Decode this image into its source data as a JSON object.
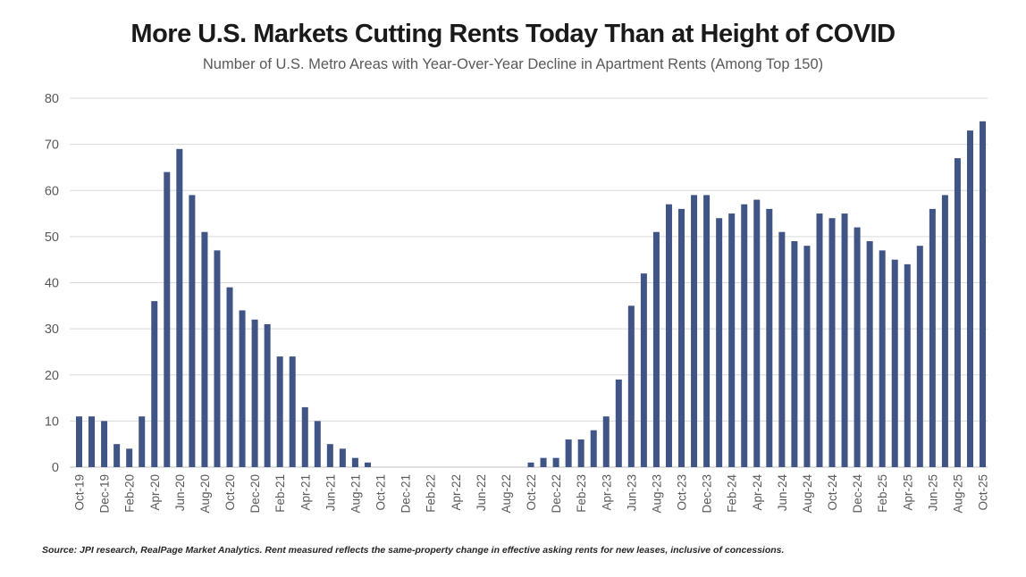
{
  "colors": {
    "bar": "#405585",
    "gridline": "#d9d9d9",
    "axis_line": "#bfbfbf",
    "tick_label": "#595959",
    "title": "#1a1a1a",
    "subtitle": "#595959",
    "source": "#262626",
    "background": "#ffffff"
  },
  "chart_data": {
    "type": "bar",
    "title": "More U.S. Markets Cutting Rents Today Than at Height of COVID",
    "subtitle": "Number of U.S. Metro Areas with Year-Over-Year Decline in Apartment Rents (Among Top 150)",
    "source_note": "Source: JPI research, RealPage Market Analytics. Rent measured reflects the same-property change in effective asking rents for new leases, inclusive of concessions.",
    "ylabel": "",
    "xlabel": "",
    "ylim": [
      0,
      80
    ],
    "y_tick_step": 10,
    "y_ticks": [
      0,
      10,
      20,
      30,
      40,
      50,
      60,
      70,
      80
    ],
    "x_label_every": 2,
    "grid": "horizontal",
    "legend_position": "none",
    "bar_color": "#405585",
    "categories": [
      "Oct-19",
      "Nov-19",
      "Dec-19",
      "Jan-20",
      "Feb-20",
      "Mar-20",
      "Apr-20",
      "May-20",
      "Jun-20",
      "Jul-20",
      "Aug-20",
      "Sep-20",
      "Oct-20",
      "Nov-20",
      "Dec-20",
      "Jan-21",
      "Feb-21",
      "Mar-21",
      "Apr-21",
      "May-21",
      "Jun-21",
      "Jul-21",
      "Aug-21",
      "Sep-21",
      "Oct-21",
      "Nov-21",
      "Dec-21",
      "Jan-22",
      "Feb-22",
      "Mar-22",
      "Apr-22",
      "May-22",
      "Jun-22",
      "Jul-22",
      "Aug-22",
      "Sep-22",
      "Oct-22",
      "Nov-22",
      "Dec-22",
      "Jan-23",
      "Feb-23",
      "Mar-23",
      "Apr-23",
      "May-23",
      "Jun-23",
      "Jul-23",
      "Aug-23",
      "Sep-23",
      "Oct-23",
      "Nov-23",
      "Dec-23",
      "Jan-24",
      "Feb-24",
      "Mar-24",
      "Apr-24",
      "May-24",
      "Jun-24",
      "Jul-24",
      "Aug-24",
      "Sep-24",
      "Oct-24",
      "Nov-24",
      "Dec-24",
      "Jan-25",
      "Feb-25",
      "Mar-25",
      "Apr-25",
      "May-25",
      "Jun-25",
      "Jul-25",
      "Aug-25",
      "Sep-25",
      "Oct-25"
    ],
    "values": [
      11,
      11,
      10,
      5,
      4,
      11,
      36,
      64,
      69,
      59,
      51,
      47,
      39,
      34,
      32,
      31,
      24,
      24,
      13,
      10,
      5,
      4,
      2,
      1,
      0,
      0,
      0,
      0,
      0,
      0,
      0,
      0,
      0,
      0,
      0,
      0,
      1,
      2,
      2,
      6,
      6,
      8,
      11,
      19,
      35,
      42,
      51,
      57,
      56,
      59,
      59,
      54,
      55,
      57,
      58,
      56,
      51,
      49,
      48,
      55,
      54,
      55,
      52,
      49,
      47,
      45,
      44,
      48,
      56,
      59,
      67,
      73,
      75
    ]
  }
}
